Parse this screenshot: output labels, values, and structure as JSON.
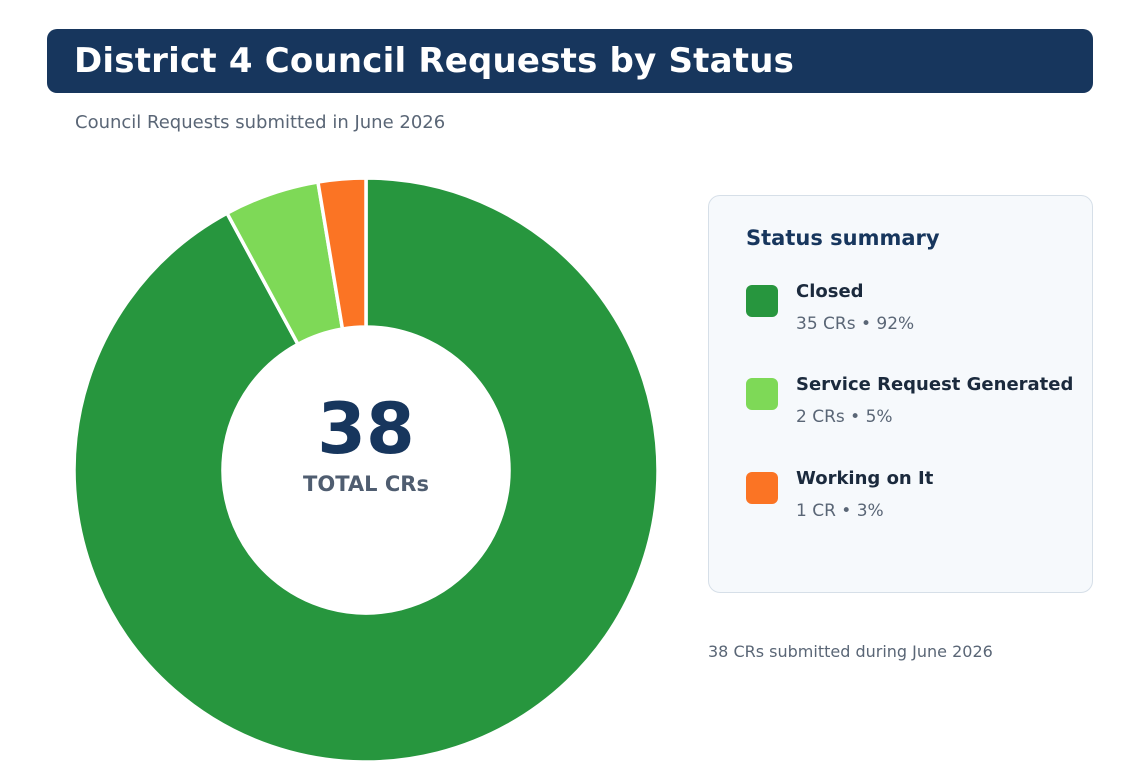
{
  "header": {
    "title": "District 4 Council Requests by Status",
    "subtitle": "Council Requests submitted in June 2026"
  },
  "chart_data": {
    "type": "pie",
    "variant": "donut",
    "categories": [
      "Closed",
      "Service Request Generated",
      "Working on It"
    ],
    "values": [
      35,
      2,
      1
    ],
    "percentages": [
      92,
      5,
      3
    ],
    "colors": [
      "#27963e",
      "#7ed957",
      "#fb7424"
    ],
    "center": {
      "value": "38",
      "label": "TOTAL CRs"
    }
  },
  "legend": {
    "title": "Status summary",
    "items": [
      {
        "label": "Closed",
        "detail": "35 CRs  •  92%",
        "color": "#27963e"
      },
      {
        "label": "Service Request Generated",
        "detail": "2 CRs  •  5%",
        "color": "#7ed957"
      },
      {
        "label": "Working on It",
        "detail": "1 CR  •  3%",
        "color": "#fb7424"
      }
    ]
  },
  "footnote": "38 CRs submitted during June 2026"
}
